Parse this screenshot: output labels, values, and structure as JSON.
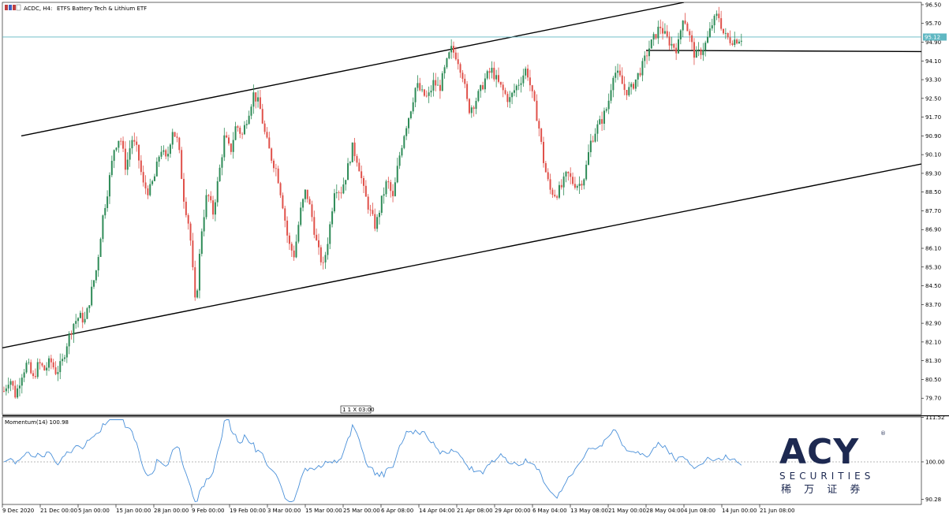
{
  "window": {
    "title_prefix": "ACDC, H4:",
    "title_desc": "ETFS Battery Tech & Lithium ETF"
  },
  "indicator": {
    "label": "Momentum(14) 100.98"
  },
  "scroll_marker": "1 1 X 03:00",
  "logo": {
    "brand": "ACY",
    "securities": "SECURITIES",
    "chinese": "稀 万 证 券",
    "registered": "®"
  },
  "colors": {
    "bull": "#2e8b57",
    "bear": "#e0514a",
    "momentum": "#4a90d9",
    "price_line": "#5fb7c2",
    "logo_navy": "#1d2951"
  },
  "chart_data": [
    {
      "type": "candlestick",
      "symbol": "ACDC",
      "timeframe": "H4",
      "name": "ETFS Battery Tech & Lithium ETF",
      "current_price": 95.12,
      "current_price_label": "95.12",
      "ylim": [
        79.0,
        96.6
      ],
      "y_ticks": [
        "96.50",
        "95.70",
        "94.90",
        "94.10",
        "93.30",
        "92.50",
        "91.70",
        "90.90",
        "90.10",
        "89.30",
        "88.50",
        "87.70",
        "86.90",
        "86.10",
        "85.30",
        "84.50",
        "83.70",
        "82.90",
        "82.10",
        "81.30",
        "80.50",
        "79.70"
      ],
      "x_ticks": [
        "9 Dec 2020",
        "21 Dec 00:00",
        "5 Jan 00:00",
        "15 Jan 00:00",
        "28 Jan 00:00",
        "9 Feb 00:00",
        "19 Feb 00:00",
        "3 Mar 00:00",
        "15 Mar 00:00",
        "25 Mar 00:00",
        "6 Apr 08:00",
        "14 Apr 04:00",
        "21 Apr 08:00",
        "29 Apr 00:00",
        "6 May 04:00",
        "13 May 08:00",
        "21 May 00:00",
        "28 May 04:00",
        "4 Jun 08:00",
        "14 Jun 00:00",
        "21 Jun 08:00"
      ],
      "trendlines": [
        {
          "name": "upper-channel",
          "points": [
            [
              "15 Dec 2020",
              90.9
            ],
            [
              "4 Jun 2021",
              96.6
            ]
          ]
        },
        {
          "name": "lower-channel",
          "points": [
            [
              "9 Dec 2020",
              81.85
            ],
            [
              "28 Jun 2021",
              89.7
            ]
          ]
        },
        {
          "name": "support-level",
          "points": [
            [
              "28 May 2021",
              94.55
            ],
            [
              "28 Jun 2021",
              94.5
            ]
          ]
        }
      ],
      "ohlc_path": [
        80.0,
        80.6,
        79.8,
        80.7,
        81.2,
        80.5,
        81.2,
        80.9,
        81.3,
        80.8,
        81.2,
        82.2,
        82.9,
        83.2,
        83.0,
        84.2,
        85.3,
        87.4,
        88.8,
        90.4,
        90.9,
        89.5,
        90.8,
        90.2,
        88.8,
        88.5,
        89.2,
        90.4,
        89.8,
        91.2,
        90.6,
        88.2,
        86.9,
        83.5,
        86.8,
        88.5,
        87.6,
        89.2,
        90.9,
        90.2,
        91.4,
        90.9,
        91.8,
        92.7,
        92.2,
        90.9,
        90.0,
        89.4,
        88.0,
        86.3,
        85.8,
        87.6,
        88.6,
        87.5,
        86.1,
        85.3,
        86.8,
        88.8,
        88.5,
        89.3,
        90.4,
        89.8,
        88.5,
        87.7,
        87.0,
        88.1,
        89.0,
        88.2,
        89.9,
        91.1,
        92.0,
        93.1,
        92.7,
        92.5,
        93.2,
        92.9,
        93.8,
        94.6,
        94.3,
        93.5,
        92.0,
        92.3,
        92.8,
        93.4,
        93.7,
        93.2,
        92.8,
        92.4,
        92.9,
        93.3,
        93.8,
        92.6,
        91.5,
        89.7,
        88.6,
        88.4,
        88.7,
        89.3,
        88.9,
        88.8,
        89.2,
        90.6,
        91.2,
        91.6,
        92.2,
        93.7,
        93.4,
        92.8,
        92.9,
        93.4,
        93.9,
        94.6,
        95.1,
        95.6,
        95.1,
        94.8,
        94.6,
        96.1,
        95.2,
        94.3,
        94.5,
        94.9,
        95.7,
        96.1,
        95.2,
        95.0,
        95.0,
        95.1
      ],
      "momentum": {
        "name": "Momentum(14)",
        "last_value": 100.98,
        "ylim": [
          89.2,
          111.4
        ],
        "y_ticks": [
          "111.52",
          "100.00",
          "90.28"
        ],
        "reference_level": 100.0
      }
    }
  ]
}
